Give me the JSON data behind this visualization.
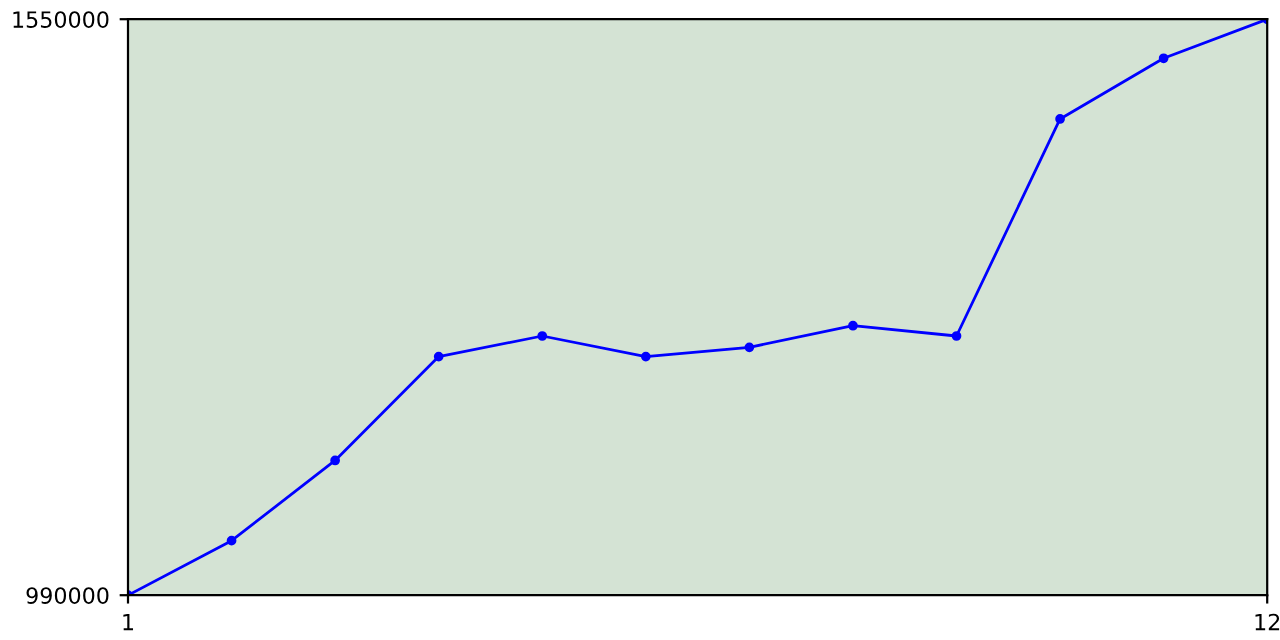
{
  "chart_data": {
    "type": "line",
    "x": [
      1,
      2,
      3,
      4,
      5,
      6,
      7,
      8,
      9,
      10,
      11,
      12
    ],
    "series": [
      {
        "color": "#0000ff",
        "values": [
          990000,
          1043000,
          1121000,
          1222000,
          1242000,
          1222000,
          1231000,
          1252000,
          1242000,
          1453000,
          1512000,
          1550000
        ]
      }
    ],
    "xlim": [
      1,
      12
    ],
    "ylim": [
      990000,
      1550000
    ],
    "xticks": [
      1,
      12
    ],
    "yticks": [
      990000,
      1550000
    ],
    "marker": "circle",
    "line_style": "solid",
    "grid": false
  }
}
